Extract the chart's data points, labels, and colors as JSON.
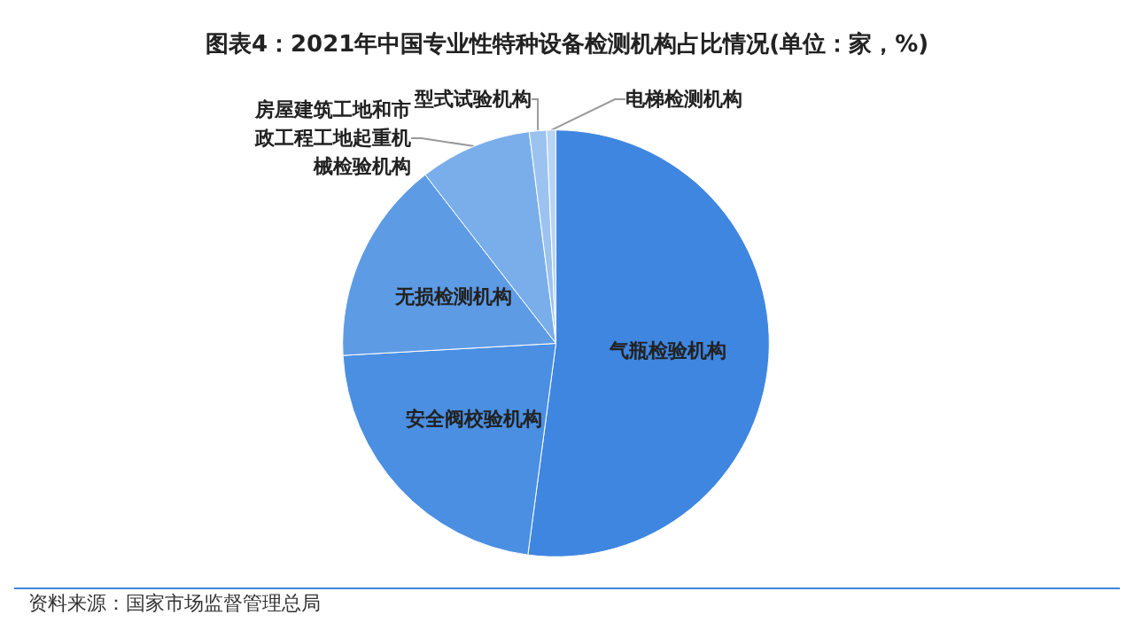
{
  "chart_data": {
    "type": "pie",
    "title": "图表4：2021年中国专业性特种设备检测机构占比情况(单位：家，%)",
    "categories": [
      "气瓶检验机构",
      "安全阀校验机构",
      "无损检测机构",
      "房屋建筑工地和市政工程工地起重机械检验机构",
      "型式试验机构",
      "电梯检测机构"
    ],
    "values": [
      52.1,
      22,
      15.4,
      8.5,
      1.3,
      0.7
    ],
    "colors": [
      "#3f86e0",
      "#4a8fe2",
      "#5e9be5",
      "#7aaeea",
      "#9cc3ef",
      "#b8d5f4"
    ],
    "annotations": [
      "资料来源：国家市场监督管理总局"
    ],
    "legend": false
  }
}
